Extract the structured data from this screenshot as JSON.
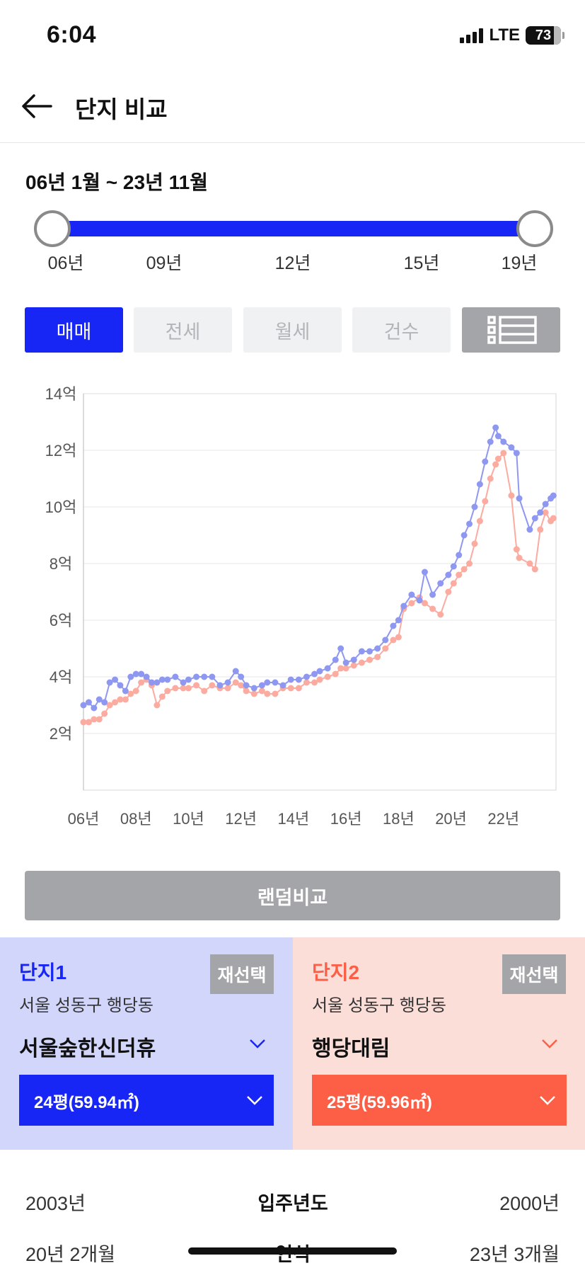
{
  "status": {
    "time": "6:04",
    "network": "LTE",
    "battery": "73"
  },
  "header": {
    "title": "단지 비교"
  },
  "range": {
    "label": "06년 1월 ~ 23년 11월",
    "ticks": [
      "06년",
      "09년",
      "12년",
      "15년",
      "19년"
    ]
  },
  "tabs": [
    {
      "label": "매매",
      "active": true
    },
    {
      "label": "전세",
      "active": false
    },
    {
      "label": "월세",
      "active": false
    },
    {
      "label": "건수",
      "active": false
    }
  ],
  "list_icon": "list-view-icon",
  "chart_data": {
    "type": "line",
    "y_ticks": [
      "2억",
      "4억",
      "6억",
      "8억",
      "10억",
      "12억",
      "14억"
    ],
    "x_ticks": [
      "06년",
      "08년",
      "10년",
      "12년",
      "14년",
      "16년",
      "18년",
      "20년",
      "22년"
    ],
    "xlim": [
      2006.0,
      2024.0
    ],
    "ylim": [
      0,
      14
    ],
    "grid": true,
    "series": [
      {
        "color": "#8f98f0",
        "x": [
          2006.0,
          2006.2,
          2006.4,
          2006.6,
          2006.8,
          2007.0,
          2007.2,
          2007.4,
          2007.6,
          2007.8,
          2008.0,
          2008.2,
          2008.4,
          2008.6,
          2008.8,
          2009.0,
          2009.2,
          2009.5,
          2009.8,
          2010.0,
          2010.3,
          2010.6,
          2010.9,
          2011.2,
          2011.5,
          2011.8,
          2012.0,
          2012.2,
          2012.5,
          2012.8,
          2013.0,
          2013.3,
          2013.6,
          2013.9,
          2014.2,
          2014.5,
          2014.8,
          2015.0,
          2015.3,
          2015.6,
          2015.8,
          2016.0,
          2016.3,
          2016.6,
          2016.9,
          2017.2,
          2017.5,
          2017.8,
          2018.0,
          2018.2,
          2018.5,
          2018.8,
          2019.0,
          2019.3,
          2019.6,
          2019.9,
          2020.1,
          2020.3,
          2020.5,
          2020.7,
          2020.9,
          2021.1,
          2021.3,
          2021.5,
          2021.7,
          2021.8,
          2022.0,
          2022.3,
          2022.5,
          2022.6,
          2023.0,
          2023.2,
          2023.4,
          2023.6,
          2023.8,
          2023.9
        ],
        "y": [
          3.0,
          3.1,
          2.9,
          3.2,
          3.1,
          3.8,
          3.9,
          3.7,
          3.5,
          4.0,
          4.1,
          4.1,
          4.0,
          3.8,
          3.8,
          3.9,
          3.9,
          4.0,
          3.8,
          3.9,
          4.0,
          4.0,
          4.0,
          3.7,
          3.8,
          4.2,
          4.0,
          3.7,
          3.6,
          3.7,
          3.8,
          3.8,
          3.7,
          3.9,
          3.9,
          4.0,
          4.1,
          4.2,
          4.3,
          4.6,
          5.0,
          4.5,
          4.6,
          4.9,
          4.9,
          5.0,
          5.3,
          5.8,
          6.0,
          6.5,
          6.9,
          6.7,
          7.7,
          6.9,
          7.3,
          7.6,
          7.9,
          8.3,
          9.0,
          9.4,
          10.0,
          10.8,
          11.6,
          12.3,
          12.8,
          12.5,
          12.3,
          12.1,
          11.9,
          10.3,
          9.2,
          9.6,
          9.8,
          10.1,
          10.3,
          10.4
        ]
      },
      {
        "color": "#fbab9f",
        "x": [
          2006.0,
          2006.2,
          2006.4,
          2006.6,
          2006.8,
          2007.0,
          2007.2,
          2007.4,
          2007.6,
          2007.8,
          2008.0,
          2008.2,
          2008.4,
          2008.6,
          2008.8,
          2009.0,
          2009.2,
          2009.5,
          2009.8,
          2010.0,
          2010.3,
          2010.6,
          2010.9,
          2011.2,
          2011.5,
          2011.8,
          2012.0,
          2012.2,
          2012.5,
          2012.8,
          2013.0,
          2013.3,
          2013.6,
          2013.9,
          2014.2,
          2014.5,
          2014.8,
          2015.0,
          2015.3,
          2015.6,
          2015.8,
          2016.0,
          2016.3,
          2016.6,
          2016.9,
          2017.2,
          2017.5,
          2017.8,
          2018.0,
          2018.2,
          2018.5,
          2018.8,
          2019.0,
          2019.3,
          2019.6,
          2019.9,
          2020.1,
          2020.3,
          2020.5,
          2020.7,
          2020.9,
          2021.1,
          2021.3,
          2021.5,
          2021.7,
          2021.8,
          2022.0,
          2022.3,
          2022.5,
          2022.6,
          2023.0,
          2023.2,
          2023.4,
          2023.6,
          2023.8,
          2023.9
        ],
        "y": [
          2.4,
          2.4,
          2.5,
          2.5,
          2.7,
          3.0,
          3.1,
          3.2,
          3.2,
          3.4,
          3.5,
          3.8,
          3.9,
          3.7,
          3.0,
          3.3,
          3.5,
          3.6,
          3.6,
          3.6,
          3.7,
          3.5,
          3.7,
          3.6,
          3.6,
          3.8,
          3.7,
          3.5,
          3.4,
          3.5,
          3.4,
          3.4,
          3.6,
          3.6,
          3.6,
          3.8,
          3.8,
          3.9,
          4.0,
          4.1,
          4.3,
          4.3,
          4.4,
          4.5,
          4.6,
          4.7,
          5.0,
          5.3,
          5.4,
          6.4,
          6.6,
          6.8,
          6.6,
          6.4,
          6.2,
          7.0,
          7.3,
          7.6,
          7.8,
          8.0,
          8.7,
          9.5,
          10.2,
          11.0,
          11.5,
          11.7,
          11.9,
          10.4,
          8.5,
          8.2,
          8.0,
          7.8,
          9.2,
          9.8,
          9.5,
          9.6
        ]
      }
    ]
  },
  "random_compare": "랜덤비교",
  "complex1": {
    "label": "단지1",
    "reselect": "재선택",
    "location": "서울 성동구 행당동",
    "name": "서울숲한신더휴",
    "size": "24평(59.94㎡)"
  },
  "complex2": {
    "label": "단지2",
    "reselect": "재선택",
    "location": "서울 성동구 행당동",
    "name": "행당대림",
    "size": "25평(59.96㎡)"
  },
  "info_rows": [
    {
      "left": "2003년",
      "label": "입주년도",
      "right": "2000년"
    },
    {
      "left": "20년 2개월",
      "label": "연식",
      "right": "23년 3개월"
    }
  ]
}
